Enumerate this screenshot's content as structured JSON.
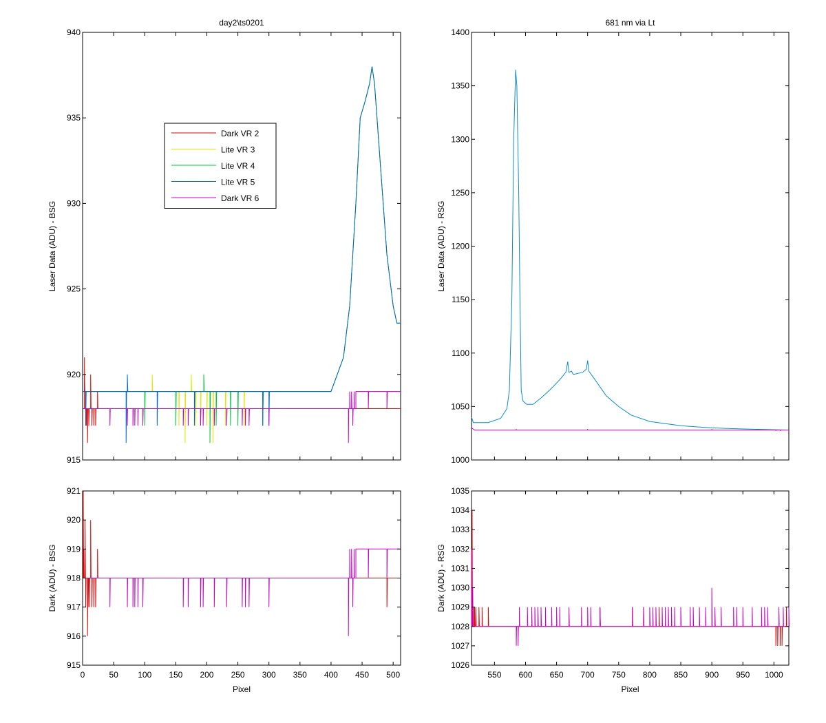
{
  "chart_data": [
    {
      "type": "line",
      "title": "day2\\ts0201",
      "xlabel": "",
      "ylabel": "Laser Data (ADU) - BSG",
      "xlim": [
        0,
        512
      ],
      "ylim": [
        915,
        940
      ],
      "xticks": [
        0,
        50,
        100,
        150,
        200,
        250,
        300,
        350,
        400,
        450,
        500
      ],
      "yticks": [
        915,
        920,
        925,
        930,
        935,
        940
      ],
      "show_x_tick_labels": false,
      "grid": false,
      "legend": "upper-left-inside",
      "colors": {
        "dark2": "#e00000",
        "lite3": "#e6e600",
        "lite4": "#00c83c",
        "lite5": "#0064d2",
        "dark6": "#c800c8"
      },
      "series": [
        {
          "name": "Dark VR 2",
          "color": "#e00000",
          "kind": "dark",
          "baseline": 918,
          "dips": [
            [
              3,
              921
            ],
            [
              6,
              917
            ],
            [
              8,
              916
            ],
            [
              10,
              917
            ],
            [
              13,
              920
            ],
            [
              15,
              917
            ],
            [
              18,
              917
            ],
            [
              21,
              917
            ],
            [
              24,
              919
            ]
          ]
        },
        {
          "name": "Lite VR 3",
          "color": "#e6e600",
          "kind": "lite",
          "step": 6,
          "noise": [
            [
              103,
              919
            ],
            [
              112,
              920
            ],
            [
              155,
              917
            ],
            [
              165,
              916
            ],
            [
              175,
              920
            ],
            [
              182,
              917
            ],
            [
              190,
              917
            ],
            [
              200,
              917
            ],
            [
              210,
              916
            ],
            [
              230,
              917
            ],
            [
              260,
              917
            ]
          ]
        },
        {
          "name": "Lite VR 4",
          "color": "#00c83c",
          "kind": "lite",
          "step": 4,
          "noise": [
            [
              100,
              917
            ],
            [
              150,
              917
            ],
            [
              195,
              920
            ],
            [
              205,
              916
            ],
            [
              215,
              917
            ],
            [
              238,
              917
            ],
            [
              250,
              917
            ],
            [
              290,
              917
            ]
          ]
        },
        {
          "name": "Lite VR 5",
          "color": "#0064d2",
          "kind": "lite",
          "step": 3,
          "noise": [
            [
              3,
              920
            ],
            [
              5,
              917
            ],
            [
              70,
              916
            ],
            [
              72,
              920
            ],
            [
              120,
              917
            ],
            [
              180,
              917
            ],
            [
              290,
              917
            ],
            [
              300,
              917
            ]
          ]
        },
        {
          "name": "Dark VR 6",
          "color": "#c800c8",
          "kind": "dark",
          "baseline": 918,
          "dips": [
            [
              44,
              917
            ],
            [
              72,
              917
            ],
            [
              81,
              917
            ],
            [
              84,
              917
            ],
            [
              89,
              917
            ],
            [
              97,
              917
            ],
            [
              162,
              917
            ],
            [
              170,
              917
            ],
            [
              190,
              917
            ],
            [
              194,
              917
            ],
            [
              212,
              917
            ],
            [
              232,
              917
            ],
            [
              257,
              917
            ],
            [
              262,
              917
            ],
            [
              268,
              917
            ],
            [
              300,
              917
            ],
            [
              428,
              916
            ],
            [
              435,
              917
            ]
          ],
          "step_to": 919,
          "step_from": 440,
          "rises": [
            [
              430,
              919
            ],
            [
              433,
              919
            ],
            [
              437,
              919
            ],
            [
              460,
              918
            ],
            [
              490,
              918
            ]
          ]
        }
      ],
      "lite_profile": [
        [
          0,
          919
        ],
        [
          380,
          919
        ],
        [
          400,
          919
        ],
        [
          410,
          920
        ],
        [
          420,
          921
        ],
        [
          430,
          924
        ],
        [
          440,
          930
        ],
        [
          447,
          935
        ],
        [
          455,
          936
        ],
        [
          462,
          937
        ],
        [
          466,
          938
        ],
        [
          470,
          937
        ],
        [
          480,
          932
        ],
        [
          490,
          927
        ],
        [
          500,
          924
        ],
        [
          506,
          923
        ],
        [
          512,
          923
        ]
      ],
      "legend_order": [
        "Dark VR 2",
        "Lite VR 3",
        "Lite VR 4",
        "Lite VR 5",
        "Dark VR 6"
      ]
    },
    {
      "type": "line",
      "title": "681 nm via Lt",
      "xlabel": "",
      "ylabel": "Laser Data (ADU) - RSG",
      "xlim": [
        513,
        1024
      ],
      "ylim": [
        1000,
        1400
      ],
      "xticks": [
        550,
        600,
        650,
        700,
        750,
        800,
        850,
        900,
        950,
        1000
      ],
      "yticks": [
        1000,
        1050,
        1100,
        1150,
        1200,
        1250,
        1300,
        1350,
        1400
      ],
      "show_x_tick_labels": false,
      "grid": false,
      "series": [
        {
          "name": "Lite",
          "color": "#0a8ccd",
          "points": [
            [
              513,
              1040
            ],
            [
              516,
              1035
            ],
            [
              540,
              1035
            ],
            [
              560,
              1039
            ],
            [
              570,
              1048
            ],
            [
              574,
              1065
            ],
            [
              578,
              1150
            ],
            [
              581,
              1300
            ],
            [
              584,
              1365
            ],
            [
              586,
              1350
            ],
            [
              589,
              1250
            ],
            [
              591,
              1150
            ],
            [
              593,
              1065
            ],
            [
              596,
              1055
            ],
            [
              602,
              1052
            ],
            [
              612,
              1052
            ],
            [
              625,
              1058
            ],
            [
              640,
              1066
            ],
            [
              655,
              1075
            ],
            [
              665,
              1082
            ],
            [
              668,
              1092
            ],
            [
              670,
              1082
            ],
            [
              674,
              1083
            ],
            [
              677,
              1080
            ],
            [
              692,
              1082
            ],
            [
              698,
              1085
            ],
            [
              700,
              1093
            ],
            [
              702,
              1083
            ],
            [
              712,
              1075
            ],
            [
              730,
              1060
            ],
            [
              750,
              1050
            ],
            [
              770,
              1042
            ],
            [
              800,
              1036
            ],
            [
              850,
              1032
            ],
            [
              900,
              1030
            ],
            [
              950,
              1029
            ],
            [
              1024,
              1028
            ]
          ]
        },
        {
          "name": "Dark",
          "color": "#c800c8",
          "points": [
            [
              513,
              1030
            ],
            [
              518,
              1028
            ],
            [
              1024,
              1028
            ]
          ],
          "spikes": [
            [
              585,
              1029
            ],
            [
              600,
              1028
            ],
            [
              700,
              1029
            ],
            [
              900,
              1029
            ],
            [
              1003,
              1027
            ],
            [
              1010,
              1027
            ]
          ]
        }
      ]
    },
    {
      "type": "line",
      "title": "",
      "xlabel": "Pixel",
      "ylabel": "Dark (ADU) - BSG",
      "xlim": [
        0,
        512
      ],
      "ylim": [
        915,
        921
      ],
      "xticks": [
        0,
        50,
        100,
        150,
        200,
        250,
        300,
        350,
        400,
        450,
        500
      ],
      "yticks": [
        915,
        916,
        917,
        918,
        919,
        920,
        921
      ],
      "grid": false,
      "series": [
        {
          "name": "Dark VR 2",
          "color": "#e00000",
          "baseline": 918,
          "dips": [
            [
              1,
              921
            ],
            [
              2,
              919
            ],
            [
              4,
              920
            ],
            [
              5,
              917
            ],
            [
              6,
              918
            ],
            [
              8,
              916
            ],
            [
              9,
              917
            ],
            [
              11,
              917
            ],
            [
              13,
              920
            ],
            [
              15,
              917
            ],
            [
              18,
              917
            ],
            [
              21,
              917
            ],
            [
              24,
              919
            ],
            [
              490,
              917
            ]
          ]
        },
        {
          "name": "Dark VR 6",
          "color": "#c800c8",
          "baseline": 918,
          "dips": [
            [
              44,
              917
            ],
            [
              72,
              917
            ],
            [
              81,
              917
            ],
            [
              84,
              917
            ],
            [
              89,
              917
            ],
            [
              97,
              917
            ],
            [
              162,
              917
            ],
            [
              170,
              917
            ],
            [
              190,
              917
            ],
            [
              194,
              917
            ],
            [
              212,
              917
            ],
            [
              232,
              917
            ],
            [
              257,
              917
            ],
            [
              262,
              917
            ],
            [
              268,
              917
            ],
            [
              300,
              917
            ],
            [
              428,
              916
            ],
            [
              435,
              917
            ]
          ],
          "step_to": 919,
          "step_from": 440,
          "rises": [
            [
              430,
              919
            ],
            [
              433,
              919
            ],
            [
              437,
              919
            ]
          ],
          "drops": [
            [
              460,
              918
            ],
            [
              490,
              918
            ]
          ]
        }
      ]
    },
    {
      "type": "line",
      "title": "",
      "xlabel": "Pixel",
      "ylabel": "Dark (ADU) - RSG",
      "xlim": [
        513,
        1024
      ],
      "ylim": [
        1026,
        1035
      ],
      "xticks": [
        550,
        600,
        650,
        700,
        750,
        800,
        850,
        900,
        950,
        1000
      ],
      "yticks": [
        1026,
        1027,
        1028,
        1029,
        1030,
        1031,
        1032,
        1033,
        1034,
        1035
      ],
      "grid": false,
      "series": [
        {
          "name": "Dark VR 2",
          "color": "#e00000",
          "baseline": 1028,
          "spikes": [
            [
              514,
              1034
            ],
            [
              516,
              1029
            ],
            [
              518,
              1029
            ],
            [
              520,
              1029
            ],
            [
              525,
              1029
            ],
            [
              530,
              1029
            ],
            [
              540,
              1029
            ],
            [
              720,
              1029
            ],
            [
              772,
              1029
            ],
            [
              790,
              1029
            ],
            [
              815,
              1029
            ],
            [
              1003,
              1027
            ],
            [
              1006,
              1027
            ],
            [
              1010,
              1027
            ],
            [
              1013,
              1027
            ],
            [
              1020,
              1029
            ]
          ]
        },
        {
          "name": "Dark VR 6",
          "color": "#c800c8",
          "baseline": 1028,
          "spikes": [
            [
              513,
              1032
            ],
            [
              515,
              1030
            ],
            [
              585,
              1027
            ],
            [
              588,
              1027
            ],
            [
              590,
              1029
            ],
            [
              603,
              1029
            ],
            [
              610,
              1029
            ],
            [
              615,
              1029
            ],
            [
              620,
              1029
            ],
            [
              625,
              1029
            ],
            [
              632,
              1029
            ],
            [
              642,
              1029
            ],
            [
              650,
              1029
            ],
            [
              655,
              1029
            ],
            [
              670,
              1029
            ],
            [
              690,
              1029
            ],
            [
              700,
              1029
            ],
            [
              705,
              1029
            ],
            [
              720,
              1029
            ],
            [
              772,
              1029
            ],
            [
              790,
              1029
            ],
            [
              800,
              1029
            ],
            [
              805,
              1029
            ],
            [
              810,
              1029
            ],
            [
              820,
              1029
            ],
            [
              825,
              1029
            ],
            [
              830,
              1029
            ],
            [
              835,
              1029
            ],
            [
              840,
              1029
            ],
            [
              850,
              1029
            ],
            [
              865,
              1029
            ],
            [
              870,
              1029
            ],
            [
              880,
              1029
            ],
            [
              890,
              1029
            ],
            [
              900,
              1030
            ],
            [
              905,
              1029
            ],
            [
              915,
              1029
            ],
            [
              935,
              1029
            ],
            [
              940,
              1029
            ],
            [
              950,
              1029
            ],
            [
              965,
              1029
            ],
            [
              980,
              1029
            ],
            [
              985,
              1029
            ],
            [
              990,
              1029
            ],
            [
              1008,
              1029
            ],
            [
              1015,
              1029
            ],
            [
              1024,
              1029
            ]
          ]
        }
      ]
    }
  ]
}
